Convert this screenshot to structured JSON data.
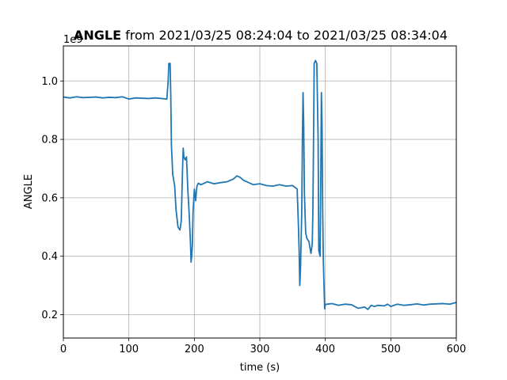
{
  "chart_data": {
    "type": "line",
    "title_bold": "ANGLE",
    "title_rest": " from 2021/03/25 08:24:04 to 2021/03/25 08:34:04",
    "xlabel": "time (s)",
    "ylabel": "ANGLE",
    "offset_label": "1e9",
    "xlim": [
      0,
      600
    ],
    "ylim": [
      0.12,
      1.12
    ],
    "xticks": [
      0,
      100,
      200,
      300,
      400,
      500,
      600
    ],
    "xtick_labels": [
      "0",
      "100",
      "200",
      "300",
      "400",
      "500",
      "600"
    ],
    "yticks": [
      0.2,
      0.4,
      0.6,
      0.8,
      1.0
    ],
    "ytick_labels": [
      "0.2",
      "0.4",
      "0.6",
      "0.8",
      "1.0"
    ],
    "grid": true,
    "line_color": "#1f77b4",
    "series": [
      {
        "x": [
          0,
          10,
          20,
          30,
          40,
          50,
          60,
          70,
          80,
          90,
          100,
          110,
          120,
          130,
          140,
          150,
          158,
          160,
          161,
          163,
          164,
          165,
          167,
          170,
          172,
          175,
          178,
          180,
          182,
          183,
          184,
          186,
          188,
          190,
          192,
          194,
          195,
          196,
          197,
          198,
          200,
          202,
          203,
          204,
          206,
          210,
          220,
          230,
          240,
          250,
          260,
          265,
          270,
          275,
          280,
          290,
          300,
          310,
          320,
          330,
          340,
          350,
          357,
          359,
          360,
          361,
          362,
          364,
          365,
          366,
          367,
          368,
          370,
          372,
          375,
          378,
          380,
          381,
          382,
          383,
          385,
          387,
          389,
          390,
          392,
          393,
          394,
          395,
          396,
          397,
          398,
          399,
          400,
          410,
          420,
          430,
          440,
          450,
          460,
          465,
          470,
          475,
          480,
          490,
          495,
          500,
          510,
          520,
          530,
          540,
          550,
          560,
          570,
          580,
          590,
          600
        ],
        "y": [
          0.945,
          0.942,
          0.946,
          0.943,
          0.944,
          0.945,
          0.942,
          0.944,
          0.943,
          0.946,
          0.938,
          0.942,
          0.941,
          0.94,
          0.942,
          0.94,
          0.938,
          1.0,
          1.06,
          1.06,
          0.95,
          0.78,
          0.68,
          0.64,
          0.56,
          0.5,
          0.49,
          0.52,
          0.7,
          0.77,
          0.74,
          0.73,
          0.74,
          0.63,
          0.55,
          0.45,
          0.38,
          0.4,
          0.44,
          0.55,
          0.63,
          0.59,
          0.62,
          0.64,
          0.65,
          0.645,
          0.655,
          0.648,
          0.652,
          0.655,
          0.665,
          0.675,
          0.67,
          0.66,
          0.655,
          0.645,
          0.648,
          0.642,
          0.64,
          0.645,
          0.64,
          0.642,
          0.63,
          0.5,
          0.42,
          0.3,
          0.35,
          0.55,
          0.8,
          0.96,
          0.85,
          0.62,
          0.48,
          0.46,
          0.45,
          0.41,
          0.44,
          0.55,
          0.8,
          1.06,
          1.07,
          1.06,
          0.8,
          0.42,
          0.4,
          0.65,
          0.96,
          0.85,
          0.55,
          0.38,
          0.3,
          0.22,
          0.235,
          0.238,
          0.232,
          0.236,
          0.234,
          0.222,
          0.226,
          0.218,
          0.232,
          0.228,
          0.232,
          0.23,
          0.236,
          0.228,
          0.236,
          0.232,
          0.234,
          0.237,
          0.233,
          0.236,
          0.237,
          0.238,
          0.236,
          0.242
        ]
      }
    ]
  }
}
